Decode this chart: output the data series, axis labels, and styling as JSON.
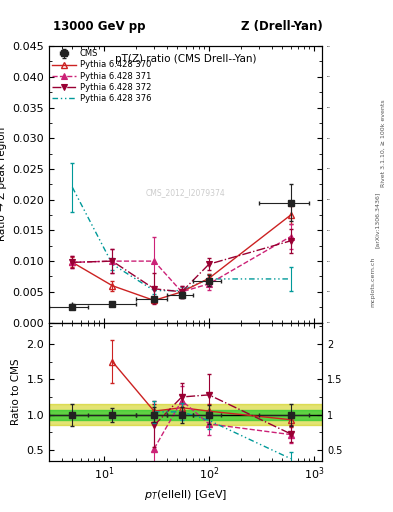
{
  "title_top_left": "13000 GeV pp",
  "title_top_right": "Z (Drell-Yan)",
  "main_title": "pT(Z) ratio (CMS Drell--Yan)",
  "ylabel_main": "Ratio → Z peak region",
  "ylabel_ratio": "Ratio to CMS",
  "xlabel": "p_{T}(ellell) [GeV]",
  "watermark": "CMS_2012_I2079374",
  "right_label_top": "Rivet 3.1.10, ≥ 100k events",
  "right_label_bot": "[arXiv:1306.3436]",
  "right_label_bot2": "mcplots.cern.ch",
  "ylim_main": [
    0.0,
    0.045
  ],
  "ylim_ratio": [
    0.35,
    2.3
  ],
  "xlim": [
    3.0,
    1200.0
  ],
  "cms_x": [
    5.0,
    12.0,
    30.0,
    55.0,
    100.0,
    600.0
  ],
  "cms_y": [
    0.0026,
    0.003,
    0.0038,
    0.0045,
    0.0068,
    0.0195
  ],
  "cms_xerr_lo": [
    2.0,
    7.0,
    10.0,
    15.0,
    30.0,
    300.0
  ],
  "cms_xerr_hi": [
    2.0,
    8.0,
    10.0,
    15.0,
    30.0,
    300.0
  ],
  "cms_yerr_lo": [
    0.0004,
    0.0003,
    0.0004,
    0.0005,
    0.0009,
    0.003
  ],
  "cms_yerr_hi": [
    0.0004,
    0.0003,
    0.0004,
    0.0005,
    0.0009,
    0.003
  ],
  "p370_x": [
    5.0,
    12.0,
    30.0,
    55.0,
    100.0,
    600.0
  ],
  "p370_y": [
    0.0098,
    0.006,
    0.0036,
    0.005,
    0.0072,
    0.0175
  ],
  "p370_yerr": [
    0.0008,
    0.0008,
    0.0004,
    0.0004,
    0.0007,
    0.0015
  ],
  "p371_x": [
    5.0,
    12.0,
    30.0,
    55.0,
    100.0,
    600.0
  ],
  "p371_y": [
    0.0098,
    0.01,
    0.01,
    0.005,
    0.0063,
    0.014
  ],
  "p371_yerr": [
    0.001,
    0.002,
    0.004,
    0.001,
    0.001,
    0.002
  ],
  "p372_x": [
    5.0,
    12.0,
    30.0,
    55.0,
    100.0,
    600.0
  ],
  "p372_y": [
    0.0098,
    0.01,
    0.0055,
    0.005,
    0.0095,
    0.0133
  ],
  "p372_yerr": [
    0.001,
    0.002,
    0.0025,
    0.001,
    0.001,
    0.002
  ],
  "p376_x": [
    5.0,
    12.0,
    30.0,
    55.0,
    100.0,
    600.0
  ],
  "p376_y": [
    0.022,
    0.0095,
    0.0052,
    0.0052,
    0.0071,
    0.0071
  ],
  "p376_yerr": [
    0.004,
    0.001,
    0.0006,
    0.0006,
    0.0008,
    0.002
  ],
  "ratio_x": [
    5.0,
    12.0,
    30.0,
    55.0,
    100.0,
    600.0
  ],
  "ratio_370_y": [
    null,
    1.75,
    1.05,
    1.1,
    1.05,
    0.93
  ],
  "ratio_370_yerr": [
    0.3,
    0.3,
    0.15,
    0.1,
    0.1,
    0.1
  ],
  "ratio_371_y": [
    null,
    null,
    0.52,
    1.2,
    0.87,
    0.72
  ],
  "ratio_371_yerr": [
    0.3,
    0.4,
    0.5,
    0.2,
    0.15,
    0.12
  ],
  "ratio_372_y": [
    null,
    null,
    0.85,
    1.25,
    1.28,
    0.73
  ],
  "ratio_372_yerr": [
    0.3,
    0.4,
    0.3,
    0.2,
    0.3,
    0.12
  ],
  "ratio_376_y": [
    null,
    null,
    1.04,
    1.04,
    0.92,
    0.38
  ],
  "ratio_376_yerr": [
    0.2,
    0.3,
    0.15,
    0.12,
    0.12,
    0.1
  ],
  "cms_ratio_yerr_green": 0.07,
  "cms_ratio_yerr_yellow": 0.15,
  "color_cms": "#222222",
  "color_370": "#cc2222",
  "color_371": "#cc2277",
  "color_372": "#990033",
  "color_376": "#009999",
  "color_green": "#33cc33",
  "color_yellow": "#cccc00",
  "bg_color": "#ffffff"
}
